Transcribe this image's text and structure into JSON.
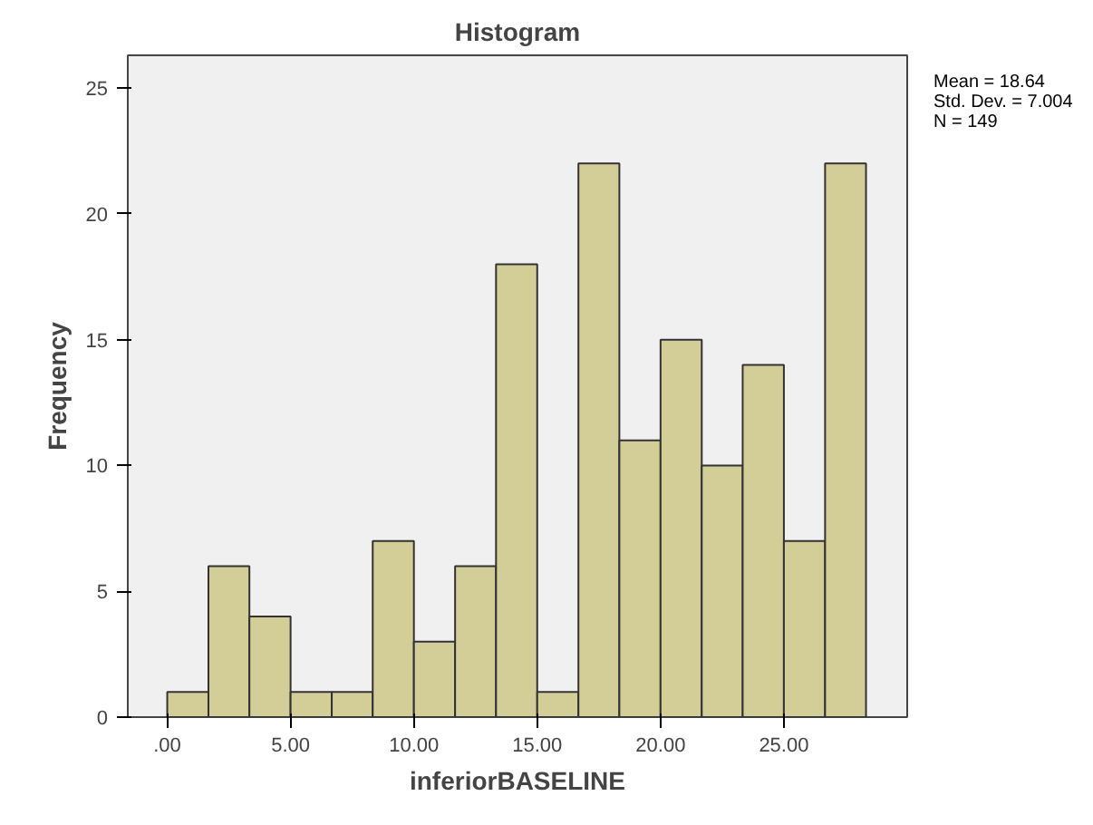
{
  "chart_data": {
    "type": "histogram",
    "title": "Histogram",
    "xlabel": "inferiorBASELINE",
    "ylabel": "Frequency",
    "bins": [
      0,
      1.67,
      3.33,
      5,
      6.67,
      8.33,
      10,
      11.67,
      13.33,
      15,
      16.67,
      18.33,
      20,
      21.67,
      23.33,
      25,
      26.67,
      28.33
    ],
    "values": [
      1,
      6,
      4,
      1,
      1,
      7,
      3,
      6,
      18,
      1,
      22,
      11,
      15,
      10,
      14,
      7,
      22
    ],
    "color": "#d3ce97",
    "xlim": [
      -1.6,
      30
    ],
    "xticks": [
      {
        "value": 0,
        "label": ".00"
      },
      {
        "value": 5,
        "label": "5.00"
      },
      {
        "value": 10,
        "label": "10.00"
      },
      {
        "value": 15,
        "label": "15.00"
      },
      {
        "value": 20,
        "label": "20.00"
      },
      {
        "value": 25,
        "label": "25.00"
      }
    ],
    "ylim": [
      0,
      26.3
    ],
    "yticks": [
      0,
      5,
      10,
      15,
      20,
      25
    ],
    "grid": false,
    "annotations": [
      "Mean = 18.64",
      "Std. Dev. = 7.004",
      "N = 149"
    ]
  }
}
